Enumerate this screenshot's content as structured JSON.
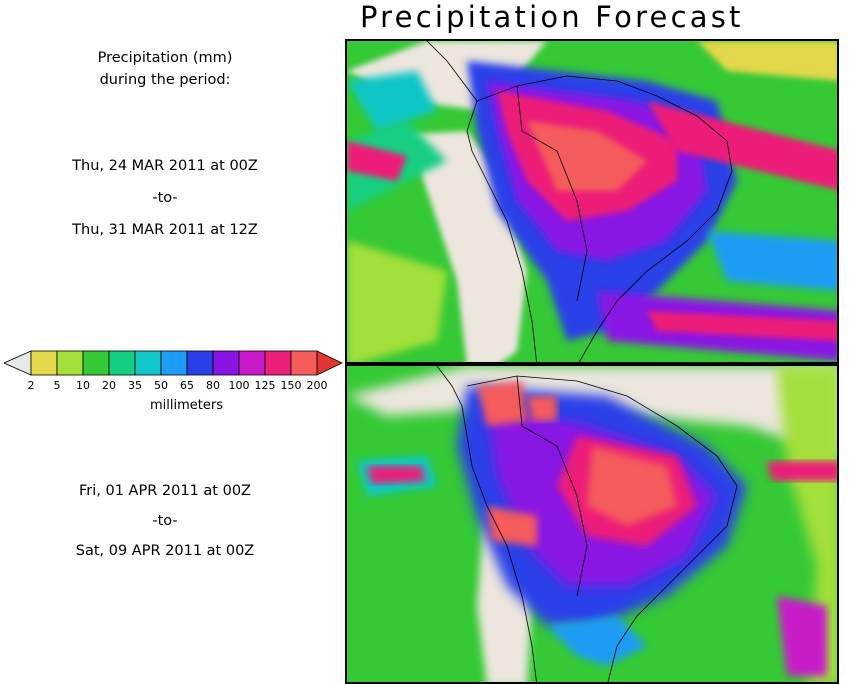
{
  "title": "Precipitation Forecast",
  "caption": {
    "line1": "Precipitation (mm)",
    "line2": "during the period:"
  },
  "period1": {
    "start": "Thu, 24 MAR 2011 at 00Z",
    "sep": "-to-",
    "end": "Thu, 31 MAR 2011 at 12Z"
  },
  "period2": {
    "start": "Fri, 01 APR 2011 at 00Z",
    "sep": "-to-",
    "end": "Sat, 09 APR 2011 at 00Z"
  },
  "legend": {
    "unit": "millimeters",
    "ticks": [
      "2",
      "5",
      "10",
      "20",
      "35",
      "50",
      "65",
      "80",
      "100",
      "125",
      "150",
      "200"
    ],
    "colors": [
      "#e8e8e8",
      "#e2d84a",
      "#a3e03a",
      "#35c935",
      "#14cf80",
      "#11c6c6",
      "#1f9cf5",
      "#2b3fe8",
      "#8a14e4",
      "#c81ac8",
      "#ec1f78",
      "#f55c5c",
      "#e43535"
    ]
  },
  "colors": {
    "dry": "#ece6dd",
    "land_outline": "#000000"
  }
}
